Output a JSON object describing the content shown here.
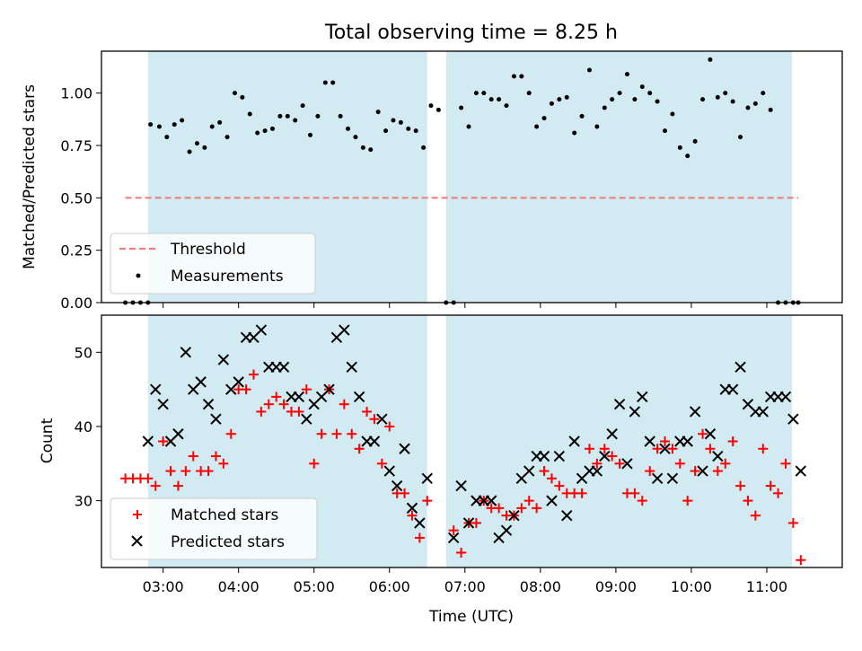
{
  "chart_data": [
    {
      "type": "scatter",
      "title": "Total observing time = 8.25 h",
      "xlabel": "",
      "ylabel": "Matched/Predicted stars",
      "xlim": [
        "02:11",
        "12:00"
      ],
      "ylim": [
        0,
        1.2
      ],
      "yticks": [
        "0.00",
        "0.25",
        "0.50",
        "0.75",
        "1.00"
      ],
      "shaded_intervals": [
        [
          "02:48",
          "06:30"
        ],
        [
          "06:45",
          "11:20"
        ]
      ],
      "shade_color": "#add8e6",
      "series": [
        {
          "name": "Threshold",
          "kind": "dashed-line",
          "color": "#f08080",
          "x": [
            "02:30",
            "11:25"
          ],
          "y": [
            0.5,
            0.5
          ]
        },
        {
          "name": "Measurements",
          "kind": "points",
          "color": "#000000",
          "x": [
            "02:30",
            "02:36",
            "02:42",
            "02:48",
            "02:50",
            "02:57",
            "03:03",
            "03:09",
            "03:15",
            "03:21",
            "03:27",
            "03:33",
            "03:39",
            "03:45",
            "03:51",
            "03:57",
            "04:03",
            "04:09",
            "04:15",
            "04:21",
            "04:27",
            "04:33",
            "04:39",
            "04:45",
            "04:51",
            "04:57",
            "05:03",
            "05:09",
            "05:15",
            "05:21",
            "05:27",
            "05:33",
            "05:39",
            "05:45",
            "05:51",
            "05:57",
            "06:03",
            "06:09",
            "06:15",
            "06:21",
            "06:27",
            "06:33",
            "06:39",
            "06:45",
            "06:51",
            "06:57",
            "07:03",
            "07:09",
            "07:15",
            "07:21",
            "07:27",
            "07:33",
            "07:39",
            "07:45",
            "07:51",
            "07:57",
            "08:03",
            "08:09",
            "08:15",
            "08:21",
            "08:27",
            "08:33",
            "08:39",
            "08:45",
            "08:51",
            "08:57",
            "09:03",
            "09:09",
            "09:15",
            "09:21",
            "09:27",
            "09:33",
            "09:39",
            "09:45",
            "09:51",
            "09:57",
            "10:03",
            "10:09",
            "10:15",
            "10:21",
            "10:27",
            "10:33",
            "10:39",
            "10:45",
            "10:51",
            "10:57",
            "11:03",
            "11:09",
            "11:15",
            "11:21",
            "11:25"
          ],
          "y": [
            0.0,
            0.0,
            0.0,
            0.0,
            0.85,
            0.84,
            0.79,
            0.85,
            0.87,
            0.72,
            0.76,
            0.74,
            0.84,
            0.86,
            0.79,
            1.0,
            0.98,
            0.9,
            0.81,
            0.82,
            0.83,
            0.89,
            0.89,
            0.87,
            0.94,
            0.8,
            0.89,
            1.05,
            1.05,
            0.89,
            0.83,
            0.79,
            0.74,
            0.73,
            0.91,
            0.82,
            0.87,
            0.86,
            0.83,
            0.82,
            0.74,
            0.94,
            0.92,
            0.0,
            0.0,
            0.93,
            0.84,
            1.0,
            1.0,
            0.97,
            0.97,
            0.94,
            1.08,
            1.08,
            1.0,
            0.84,
            0.88,
            0.95,
            0.97,
            0.98,
            0.81,
            0.89,
            1.11,
            0.84,
            0.93,
            0.97,
            1.0,
            1.09,
            0.97,
            1.03,
            1.0,
            0.96,
            0.82,
            0.9,
            0.74,
            0.7,
            0.77,
            0.97,
            1.16,
            0.98,
            1.0,
            0.96,
            0.79,
            0.93,
            0.95,
            1.0,
            0.92,
            0.0,
            0.0,
            0.0,
            0.0
          ]
        }
      ],
      "legend": {
        "position": "bottom-left",
        "labels": [
          "Threshold",
          "Measurements"
        ]
      }
    },
    {
      "type": "scatter",
      "title": "",
      "xlabel": "Time (UTC)",
      "ylabel": "Count",
      "xlim": [
        "02:11",
        "12:00"
      ],
      "ylim": [
        21,
        55
      ],
      "xticks": [
        "03:00",
        "04:00",
        "05:00",
        "06:00",
        "07:00",
        "08:00",
        "09:00",
        "10:00",
        "11:00"
      ],
      "yticks": [
        "30",
        "40",
        "50"
      ],
      "shaded_intervals": [
        [
          "02:48",
          "06:30"
        ],
        [
          "06:45",
          "11:20"
        ]
      ],
      "shade_color": "#add8e6",
      "series": [
        {
          "name": "Matched stars",
          "marker": "plus",
          "color": "#ff0000",
          "x": [
            "02:30",
            "02:36",
            "02:42",
            "02:48",
            "02:54",
            "03:00",
            "03:06",
            "03:12",
            "03:18",
            "03:24",
            "03:30",
            "03:36",
            "03:42",
            "03:48",
            "03:54",
            "04:00",
            "04:06",
            "04:12",
            "04:18",
            "04:24",
            "04:30",
            "04:36",
            "04:42",
            "04:48",
            "04:54",
            "05:00",
            "05:06",
            "05:12",
            "05:18",
            "05:24",
            "05:30",
            "05:36",
            "05:42",
            "05:48",
            "05:54",
            "06:00",
            "06:06",
            "06:12",
            "06:18",
            "06:24",
            "06:30",
            "06:51",
            "06:57",
            "07:03",
            "07:09",
            "07:15",
            "07:21",
            "07:27",
            "07:33",
            "07:39",
            "07:45",
            "07:51",
            "07:57",
            "08:03",
            "08:09",
            "08:15",
            "08:21",
            "08:27",
            "08:33",
            "08:39",
            "08:45",
            "08:51",
            "08:57",
            "09:03",
            "09:09",
            "09:15",
            "09:21",
            "09:27",
            "09:33",
            "09:39",
            "09:45",
            "09:51",
            "09:57",
            "10:03",
            "10:09",
            "10:15",
            "10:21",
            "10:27",
            "10:33",
            "10:39",
            "10:45",
            "10:51",
            "10:57",
            "11:03",
            "11:09",
            "11:15",
            "11:21",
            "11:27"
          ],
          "y": [
            33,
            33,
            33,
            33,
            32,
            38,
            34,
            32,
            34,
            36,
            34,
            34,
            36,
            35,
            39,
            45,
            45,
            47,
            42,
            43,
            44,
            43,
            42,
            42,
            45,
            35,
            39,
            45,
            39,
            43,
            39,
            37,
            42,
            41,
            35,
            40,
            31,
            31,
            28,
            25,
            30,
            26,
            23,
            27,
            27,
            30,
            29,
            29,
            28,
            28,
            29,
            30,
            29,
            34,
            33,
            32,
            31,
            31,
            31,
            37,
            35,
            37,
            36,
            35,
            31,
            31,
            30,
            34,
            37,
            38,
            37,
            35,
            30,
            34,
            39,
            37,
            34,
            35,
            38,
            32,
            30,
            28,
            37,
            32,
            31,
            35,
            27,
            22
          ]
        },
        {
          "name": "Predicted stars",
          "marker": "x",
          "color": "#000000",
          "x": [
            "02:48",
            "02:54",
            "03:00",
            "03:06",
            "03:12",
            "03:18",
            "03:24",
            "03:30",
            "03:36",
            "03:42",
            "03:48",
            "03:54",
            "04:00",
            "04:06",
            "04:12",
            "04:18",
            "04:24",
            "04:30",
            "04:36",
            "04:42",
            "04:48",
            "04:54",
            "05:00",
            "05:06",
            "05:12",
            "05:18",
            "05:24",
            "05:30",
            "05:36",
            "05:42",
            "05:48",
            "05:54",
            "06:00",
            "06:06",
            "06:12",
            "06:18",
            "06:24",
            "06:30",
            "06:51",
            "06:57",
            "07:03",
            "07:09",
            "07:15",
            "07:21",
            "07:27",
            "07:33",
            "07:39",
            "07:45",
            "07:51",
            "07:57",
            "08:03",
            "08:09",
            "08:15",
            "08:21",
            "08:27",
            "08:33",
            "08:39",
            "08:45",
            "08:51",
            "08:57",
            "09:03",
            "09:09",
            "09:15",
            "09:21",
            "09:27",
            "09:33",
            "09:39",
            "09:45",
            "09:51",
            "09:57",
            "10:03",
            "10:09",
            "10:15",
            "10:21",
            "10:27",
            "10:33",
            "10:39",
            "10:45",
            "10:51",
            "10:57",
            "11:03",
            "11:09",
            "11:15",
            "11:21",
            "11:27"
          ],
          "y": [
            38,
            45,
            43,
            38,
            39,
            50,
            45,
            46,
            43,
            41,
            49,
            45,
            46,
            52,
            52,
            53,
            48,
            48,
            48,
            44,
            44,
            41,
            43,
            44,
            45,
            52,
            53,
            48,
            44,
            38,
            38,
            41,
            34,
            32,
            37,
            29,
            27,
            33,
            25,
            32,
            27,
            30,
            30,
            30,
            25,
            26,
            28,
            33,
            34,
            36,
            36,
            30,
            36,
            28,
            38,
            33,
            34,
            34,
            36,
            39,
            43,
            35,
            42,
            44,
            38,
            33,
            37,
            33,
            38,
            38,
            42,
            34,
            39,
            36,
            45,
            45,
            48,
            43,
            42,
            42,
            44,
            44,
            44,
            41,
            34
          ]
        }
      ],
      "legend": {
        "position": "bottom-left",
        "labels": [
          "Matched stars",
          "Predicted stars"
        ]
      }
    }
  ]
}
